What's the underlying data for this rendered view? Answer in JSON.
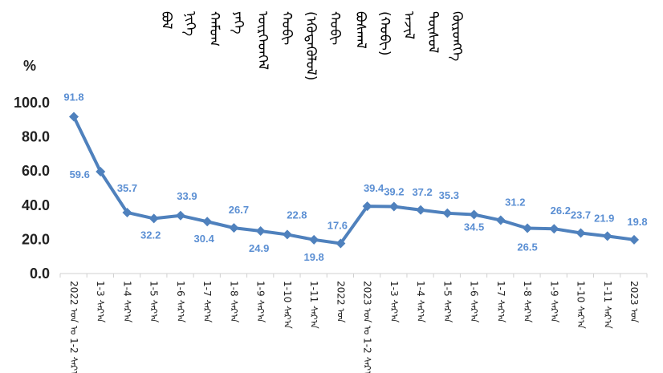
{
  "chart_title_columns": [
    "ᠪᠣᠯ",
    "ᠨᠢᠭᠡ",
    "ᠬᠠᠮᠤᠭ",
    "ᠶᠡᠬᠡ",
    "ᠥᠷᠭᠡᠳᠬᠡᠯ",
    "ᠬᠤᠪᠢ",
    "(ᠡᠭᠦᠳᠡᠭᠦᠯᠦᠯ)",
    "ᠬᠤᠪᠢ",
    "ᠪᠣᠰᠬᠠᠯ",
    "(ᠬᠤᠪᠢ)",
    "ᠠᠵᠢᠯ",
    "ᠲᠥᠰᠦᠯ",
    "ᠬᠥᠷᠥᠩᠭᠡ"
  ],
  "chart_data": {
    "type": "line",
    "unit_label": "%",
    "ylim": [
      0,
      100
    ],
    "y_ticks": [
      "0.0",
      "20.0",
      "40.0",
      "60.0",
      "80.0",
      "100.0"
    ],
    "series": [
      {
        "values": [
          91.8,
          59.6,
          35.7,
          32.2,
          33.9,
          30.4,
          26.7,
          24.9,
          22.8,
          19.8,
          17.6,
          39.4,
          39.2,
          37.2,
          35.3,
          34.5,
          31.2,
          26.5,
          26.2,
          23.7,
          21.9,
          19.8
        ],
        "data_labels": [
          "91.8",
          "59.6",
          "35.7",
          "32.2",
          "33.9",
          "30.4",
          "26.7",
          "24.9",
          "22.8",
          "19.8",
          "17.6",
          "39.4",
          "39.2",
          "37.2",
          "35.3",
          "34.5",
          "31.2",
          "26.5",
          "26.2",
          "23.7",
          "21.9",
          "19.8"
        ],
        "color": "#4f81bd"
      }
    ],
    "categories": [
      "2022 ᠣᠨ ᠤ 1-2 ᠰᠠᠷ᠎ᠠ",
      "1-3 ᠰᠠᠷ᠎ᠠ",
      "1-4 ᠰᠠᠷ᠎ᠠ",
      "1-5 ᠰᠠᠷ᠎ᠠ",
      "1-6 ᠰᠠᠷ᠎ᠠ",
      "1-7 ᠰᠠᠷ᠎ᠠ",
      "1-8 ᠰᠠᠷ᠎ᠠ",
      "1-9 ᠰᠠᠷ᠎ᠠ",
      "1-10 ᠰᠠᠷ᠎ᠠ",
      "1-11 ᠰᠠᠷ᠎ᠠ",
      "2022 ᠣᠨ",
      "2023 ᠣᠨ ᠤ 1-2 ᠰᠠᠷ᠎ᠠ",
      "1-3 ᠰᠠᠷ᠎ᠠ",
      "1-4 ᠰᠠᠷ᠎ᠠ",
      "1-5 ᠰᠠᠷ᠎ᠠ",
      "1-6 ᠰᠠᠷ᠎ᠠ",
      "1-7 ᠰᠠᠷ᠎ᠠ",
      "1-8 ᠰᠠᠷ᠎ᠠ",
      "1-9 ᠰᠠᠷ᠎ᠠ",
      "1-10 ᠰᠠᠷ᠎ᠠ",
      "1-11 ᠰᠠᠷ᠎ᠠ",
      "2023 ᠣᠨ"
    ],
    "grid": false,
    "legend": "none",
    "marker": "diamond"
  }
}
